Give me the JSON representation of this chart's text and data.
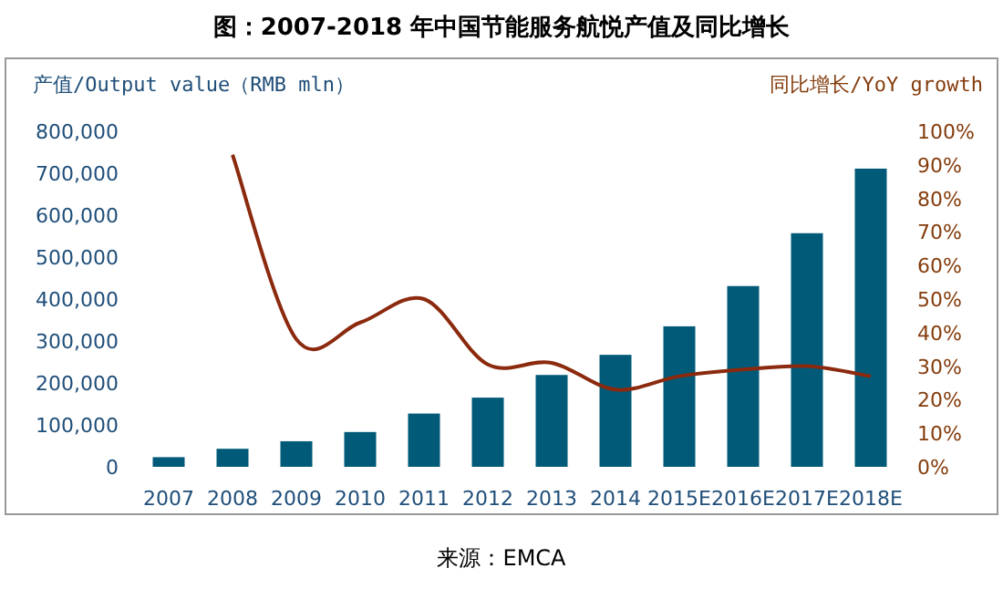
{
  "chart_data": {
    "type": "bar",
    "title": "图：2007-2018 年中国节能服务航悦产值及同比增长",
    "ylabel": "产值/Output value（RMB mln）",
    "y2label": "同比增长/YoY growth",
    "annotations": [
      "来源：EMCA"
    ],
    "categories": [
      "2007",
      "2008",
      "2009",
      "2010",
      "2011",
      "2012",
      "2013",
      "2014",
      "2015E",
      "2016E",
      "2017E",
      "2018E"
    ],
    "series": [
      {
        "color": "#005a78",
        "values": [
          23000,
          43000,
          61000,
          83000,
          127000,
          165000,
          219000,
          267000,
          335000,
          431000,
          557000,
          711000
        ]
      },
      {
        "type": "line",
        "axis": "y2",
        "color": "#8b2a0e",
        "values": [
          null,
          93,
          38,
          43,
          50,
          30.5,
          31,
          23,
          27,
          29,
          30,
          27
        ]
      }
    ],
    "ylim": [
      0,
      800000
    ],
    "yticks": [
      {
        "value": 0,
        "label": "0"
      },
      {
        "value": 100000,
        "label": "100,000"
      },
      {
        "value": 200000,
        "label": "200,000"
      },
      {
        "value": 300000,
        "label": "300,000"
      },
      {
        "value": 400000,
        "label": "400,000"
      },
      {
        "value": 500000,
        "label": "500,000"
      },
      {
        "value": 600000,
        "label": "600,000"
      },
      {
        "value": 700000,
        "label": "700,000"
      },
      {
        "value": 800000,
        "label": "800,000"
      }
    ],
    "y2lim": [
      0,
      100
    ],
    "y2ticks": [
      {
        "value": 0,
        "label": "0%"
      },
      {
        "value": 10,
        "label": "10%"
      },
      {
        "value": 20,
        "label": "20%"
      },
      {
        "value": 30,
        "label": "30%"
      },
      {
        "value": 40,
        "label": "40%"
      },
      {
        "value": 50,
        "label": "50%"
      },
      {
        "value": 60,
        "label": "60%"
      },
      {
        "value": 70,
        "label": "70%"
      },
      {
        "value": 80,
        "label": "80%"
      },
      {
        "value": 90,
        "label": "90%"
      },
      {
        "value": 100,
        "label": "100%"
      }
    ],
    "grid": false
  }
}
